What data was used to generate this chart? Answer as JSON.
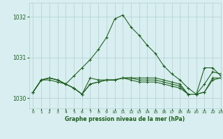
{
  "bg_color": "#d8eef0",
  "grid_color": "#b0d0d0",
  "line_color": "#1a5c1a",
  "title": "Graphe pression niveau de la mer (hPa)",
  "xlim": [
    -0.5,
    23
  ],
  "ylim": [
    1029.75,
    1032.35
  ],
  "yticks": [
    1030,
    1031,
    1032
  ],
  "xticks": [
    0,
    1,
    2,
    3,
    4,
    5,
    6,
    7,
    8,
    9,
    10,
    11,
    12,
    13,
    14,
    15,
    16,
    17,
    18,
    19,
    20,
    21,
    22,
    23
  ],
  "series": [
    {
      "x": [
        0,
        1,
        2,
        3,
        4,
        5,
        6,
        7,
        8,
        9,
        10,
        11,
        12,
        13,
        14,
        15,
        16,
        17,
        18,
        19,
        20,
        21,
        22,
        23
      ],
      "y": [
        1030.15,
        1030.45,
        1030.5,
        1030.45,
        1030.35,
        1030.55,
        1030.75,
        1030.95,
        1031.2,
        1031.5,
        1031.95,
        1032.05,
        1031.75,
        1031.55,
        1031.3,
        1031.1,
        1030.8,
        1030.6,
        1030.45,
        1030.25,
        1030.1,
        1030.35,
        1030.65,
        1030.6
      ]
    },
    {
      "x": [
        0,
        1,
        2,
        3,
        4,
        5,
        6,
        7,
        8,
        9,
        10,
        11,
        12,
        13,
        14,
        15,
        16,
        17,
        18,
        19,
        20,
        21,
        22,
        23
      ],
      "y": [
        1030.15,
        1030.45,
        1030.5,
        1030.45,
        1030.35,
        1030.25,
        1030.1,
        1030.35,
        1030.4,
        1030.45,
        1030.45,
        1030.5,
        1030.5,
        1030.5,
        1030.5,
        1030.5,
        1030.45,
        1030.4,
        1030.35,
        1030.1,
        1030.1,
        1030.15,
        1030.5,
        1030.5
      ]
    },
    {
      "x": [
        0,
        1,
        2,
        3,
        4,
        5,
        6,
        7,
        8,
        9,
        10,
        11,
        12,
        13,
        14,
        15,
        16,
        17,
        18,
        19,
        20,
        21,
        22,
        23
      ],
      "y": [
        1030.15,
        1030.45,
        1030.5,
        1030.45,
        1030.35,
        1030.25,
        1030.1,
        1030.35,
        1030.4,
        1030.45,
        1030.45,
        1030.5,
        1030.5,
        1030.45,
        1030.45,
        1030.45,
        1030.4,
        1030.35,
        1030.3,
        1030.1,
        1030.1,
        1030.15,
        1030.45,
        1030.5
      ]
    },
    {
      "x": [
        0,
        1,
        2,
        3,
        4,
        5,
        6,
        7,
        8,
        9,
        10,
        11,
        12,
        13,
        14,
        15,
        16,
        17,
        18,
        19,
        20,
        21,
        22,
        23
      ],
      "y": [
        1030.15,
        1030.45,
        1030.45,
        1030.4,
        1030.35,
        1030.25,
        1030.1,
        1030.5,
        1030.45,
        1030.45,
        1030.45,
        1030.5,
        1030.45,
        1030.4,
        1030.4,
        1030.4,
        1030.35,
        1030.3,
        1030.25,
        1030.1,
        1030.1,
        1030.75,
        1030.75,
        1030.55
      ]
    }
  ]
}
